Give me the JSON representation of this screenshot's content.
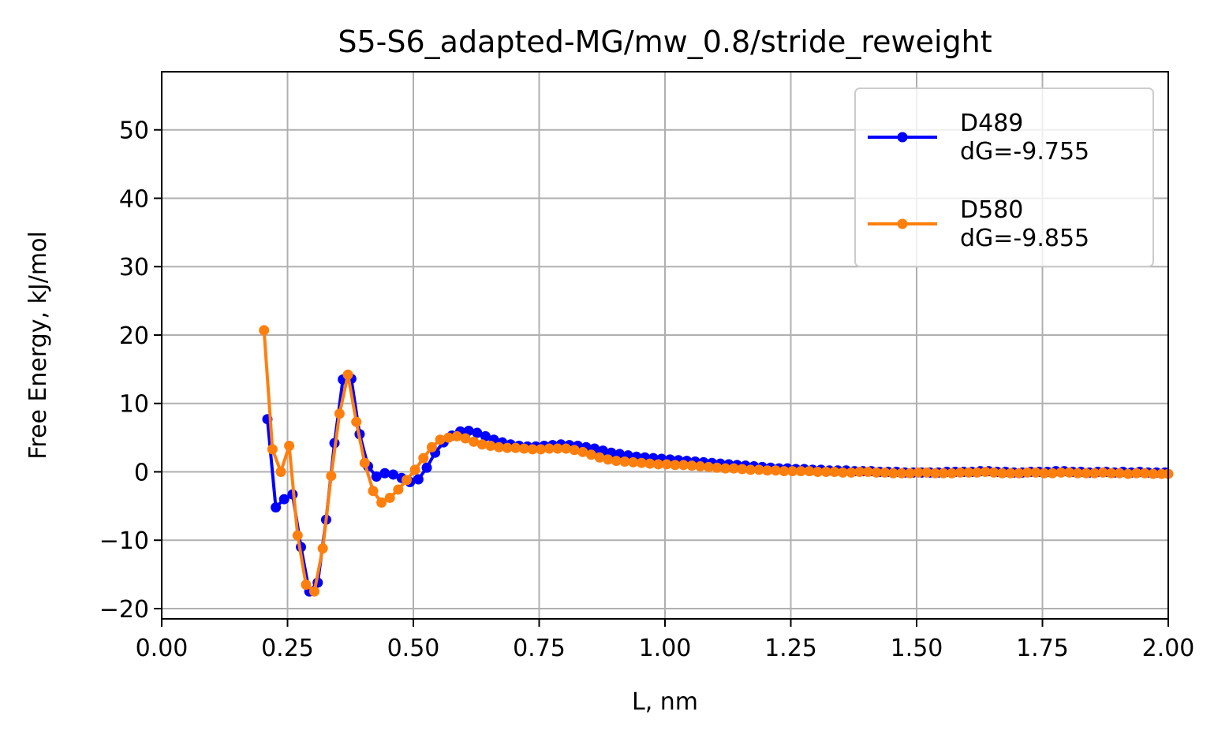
{
  "chart_data": {
    "type": "line",
    "title": "S5-S6_adapted-MG/mw_0.8/stride_reweight",
    "xlabel": "L, nm",
    "ylabel": "Free Energy, kJ/mol",
    "xlim": [
      0.0,
      2.0
    ],
    "ylim": [
      -21.5,
      58.5
    ],
    "xticks": [
      0.0,
      0.25,
      0.5,
      0.75,
      1.0,
      1.25,
      1.5,
      1.75,
      2.0
    ],
    "xtick_labels": [
      "0.00",
      "0.25",
      "0.50",
      "0.75",
      "1.00",
      "1.25",
      "1.50",
      "1.75",
      "2.00"
    ],
    "yticks": [
      -20,
      -10,
      0,
      10,
      20,
      30,
      40,
      50
    ],
    "ytick_labels": [
      "−20",
      "−10",
      "0",
      "10",
      "20",
      "30",
      "40",
      "50"
    ],
    "grid": true,
    "legend_position": "upper right",
    "series": [
      {
        "name": "D489\ndG=-9.755",
        "legend_lines": [
          "D489",
          "dG=-9.755"
        ],
        "color": "#0000ff",
        "marker": "circle",
        "x": [
          0.21,
          0.2267,
          0.2433,
          0.26,
          0.2767,
          0.2933,
          0.31,
          0.3267,
          0.3433,
          0.36,
          0.3767,
          0.3933,
          0.41,
          0.4267,
          0.4433,
          0.46,
          0.4767,
          0.4933,
          0.51,
          0.5267,
          0.5433,
          0.56,
          0.5767,
          0.5933,
          0.61,
          0.6267,
          0.6433,
          0.66,
          0.6767,
          0.6933,
          0.71,
          0.7267,
          0.7433,
          0.76,
          0.7767,
          0.7933,
          0.81,
          0.8267,
          0.8433,
          0.86,
          0.8767,
          0.8933,
          0.91,
          0.9267,
          0.9433,
          0.96,
          0.9767,
          0.9933,
          1.01,
          1.0267,
          1.0433,
          1.06,
          1.0767,
          1.0933,
          1.11,
          1.1267,
          1.1433,
          1.16,
          1.1767,
          1.1933,
          1.21,
          1.2267,
          1.2433,
          1.26,
          1.2767,
          1.2933,
          1.31,
          1.3267,
          1.3433,
          1.36,
          1.3767,
          1.3933,
          1.41,
          1.4267,
          1.4433,
          1.46,
          1.4767,
          1.4933,
          1.51,
          1.5267,
          1.5433,
          1.56,
          1.5767,
          1.5933,
          1.61,
          1.6267,
          1.6433,
          1.66,
          1.6767,
          1.6933,
          1.71,
          1.7267,
          1.7433,
          1.76,
          1.7767,
          1.7933,
          1.81,
          1.8267,
          1.8433,
          1.86,
          1.8767,
          1.8933,
          1.91,
          1.9267,
          1.9433,
          1.96,
          1.9767,
          1.9933
        ],
        "y": [
          7.7,
          -5.2,
          -4.0,
          -3.3,
          -11.0,
          -17.5,
          -16.2,
          -7.0,
          4.2,
          13.5,
          13.6,
          5.5,
          0.8,
          -0.7,
          -0.2,
          -0.4,
          -0.9,
          -1.5,
          -1.1,
          0.6,
          2.8,
          4.3,
          5.3,
          5.9,
          6.0,
          5.7,
          5.2,
          4.7,
          4.3,
          4.0,
          3.8,
          3.7,
          3.7,
          3.8,
          3.9,
          4.0,
          3.9,
          3.8,
          3.6,
          3.4,
          3.1,
          2.8,
          2.6,
          2.4,
          2.2,
          2.1,
          2.0,
          1.9,
          1.8,
          1.7,
          1.6,
          1.5,
          1.4,
          1.3,
          1.2,
          1.1,
          1.0,
          0.9,
          0.8,
          0.7,
          0.6,
          0.5,
          0.5,
          0.4,
          0.4,
          0.3,
          0.3,
          0.2,
          0.2,
          0.2,
          0.1,
          0.1,
          0.1,
          0.0,
          0.0,
          0.0,
          -0.1,
          -0.1,
          -0.1,
          -0.1,
          -0.1,
          0.0,
          0.0,
          0.0,
          0.0,
          0.1,
          0.1,
          0.0,
          0.0,
          -0.1,
          -0.1,
          0.0,
          0.0,
          0.0,
          0.1,
          0.1,
          0.0,
          0.0,
          -0.1,
          0.0,
          0.0,
          -0.1,
          0.0,
          -0.1,
          0.0,
          -0.1,
          -0.1,
          -0.1
        ]
      },
      {
        "name": "D580\ndG=-9.855",
        "legend_lines": [
          "D580",
          "dG=-9.855"
        ],
        "color": "#ff7f0e",
        "marker": "circle",
        "x": [
          0.2033,
          0.22,
          0.2367,
          0.2533,
          0.27,
          0.2867,
          0.3033,
          0.32,
          0.3367,
          0.3533,
          0.37,
          0.3867,
          0.4033,
          0.42,
          0.4367,
          0.4533,
          0.47,
          0.4867,
          0.5033,
          0.52,
          0.5367,
          0.5533,
          0.57,
          0.5867,
          0.6033,
          0.62,
          0.6367,
          0.6533,
          0.67,
          0.6867,
          0.7033,
          0.72,
          0.7367,
          0.7533,
          0.77,
          0.7867,
          0.8033,
          0.82,
          0.8367,
          0.8533,
          0.87,
          0.8867,
          0.9033,
          0.92,
          0.9367,
          0.9533,
          0.97,
          0.9867,
          1.0033,
          1.02,
          1.0367,
          1.0533,
          1.07,
          1.0867,
          1.1033,
          1.12,
          1.1367,
          1.1533,
          1.17,
          1.1867,
          1.2033,
          1.22,
          1.2367,
          1.2533,
          1.27,
          1.2867,
          1.3033,
          1.32,
          1.3367,
          1.3533,
          1.37,
          1.3867,
          1.4033,
          1.42,
          1.4367,
          1.4533,
          1.47,
          1.4867,
          1.5033,
          1.52,
          1.5367,
          1.5533,
          1.57,
          1.5867,
          1.6033,
          1.62,
          1.6367,
          1.6533,
          1.67,
          1.6867,
          1.7033,
          1.72,
          1.7367,
          1.7533,
          1.77,
          1.7867,
          1.8033,
          1.82,
          1.8367,
          1.8533,
          1.87,
          1.8867,
          1.9033,
          1.92,
          1.9367,
          1.9533,
          1.97,
          1.9867,
          2.0
        ],
        "y": [
          20.7,
          3.3,
          0.0,
          3.8,
          -9.3,
          -16.5,
          -17.5,
          -11.2,
          -0.6,
          8.5,
          14.2,
          7.3,
          1.3,
          -2.8,
          -4.5,
          -3.8,
          -2.6,
          -1.2,
          0.3,
          2.0,
          3.6,
          4.7,
          5.0,
          5.2,
          4.9,
          4.4,
          4.0,
          3.8,
          3.6,
          3.5,
          3.5,
          3.4,
          3.3,
          3.3,
          3.4,
          3.4,
          3.4,
          3.2,
          2.9,
          2.5,
          2.1,
          1.8,
          1.6,
          1.5,
          1.4,
          1.3,
          1.2,
          1.1,
          1.1,
          1.0,
          1.0,
          0.9,
          0.8,
          0.7,
          0.6,
          0.5,
          0.5,
          0.4,
          0.3,
          0.3,
          0.2,
          0.2,
          0.1,
          0.1,
          0.1,
          0.1,
          0.0,
          0.0,
          0.0,
          -0.1,
          -0.1,
          0.0,
          0.0,
          -0.1,
          -0.1,
          -0.2,
          -0.2,
          -0.2,
          -0.1,
          -0.1,
          -0.2,
          -0.2,
          -0.2,
          -0.1,
          -0.1,
          -0.1,
          0.0,
          -0.1,
          -0.2,
          -0.2,
          -0.2,
          -0.1,
          -0.1,
          -0.2,
          -0.2,
          -0.1,
          -0.1,
          -0.2,
          -0.2,
          -0.2,
          -0.1,
          -0.2,
          -0.2,
          -0.3,
          -0.2,
          -0.2,
          -0.3,
          -0.3,
          -0.3
        ]
      }
    ]
  }
}
